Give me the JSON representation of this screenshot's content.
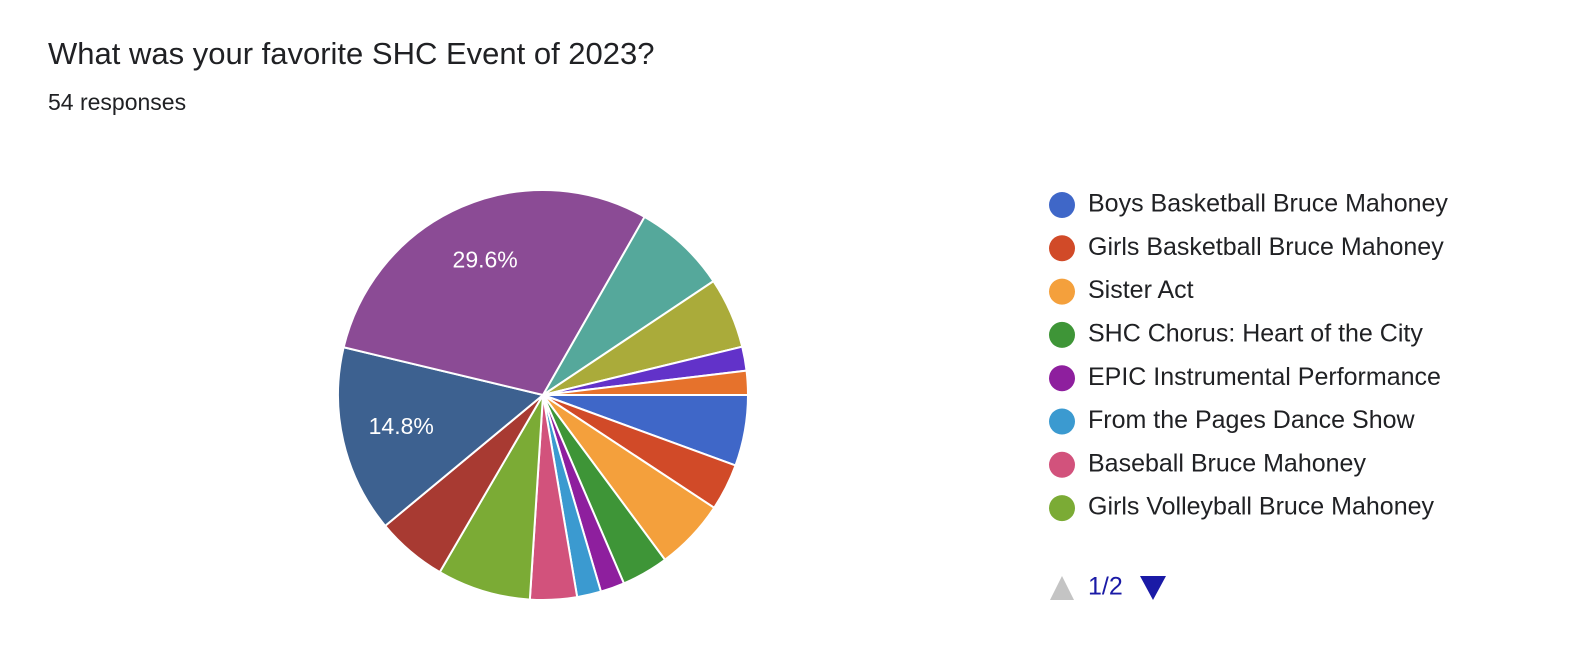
{
  "chart_data": {
    "type": "pie",
    "title": "What was your favorite SHC Event of 2023?",
    "subtitle": "54 responses",
    "categories": [
      "Boys Basketball Bruce Mahoney",
      "Girls Basketball Bruce Mahoney",
      "Sister Act",
      "SHC Chorus: Heart of the City",
      "EPIC Instrumental Performance",
      "From the Pages Dance Show",
      "Baseball Bruce Mahoney",
      "Girls Volleyball Bruce Mahoney",
      null,
      null,
      null,
      null,
      null,
      null,
      null
    ],
    "values": [
      5.6,
      3.7,
      5.6,
      3.7,
      1.9,
      1.9,
      3.7,
      7.4,
      5.6,
      14.8,
      29.6,
      7.4,
      5.6,
      1.9,
      1.9
    ],
    "value_labels": [
      null,
      null,
      null,
      null,
      null,
      null,
      null,
      null,
      null,
      "14.8%",
      "29.6%",
      null,
      null,
      null,
      null
    ],
    "colors": [
      "#3f67c8",
      "#d14a28",
      "#f4a03c",
      "#3e9537",
      "#8e1f9e",
      "#3b9ad0",
      "#d2527c",
      "#7bab35",
      "#a83a32",
      "#3d6190",
      "#8b4b95",
      "#55a89b",
      "#aaab3a",
      "#6232c9",
      "#e6722c"
    ],
    "legend_page": "1/2"
  }
}
